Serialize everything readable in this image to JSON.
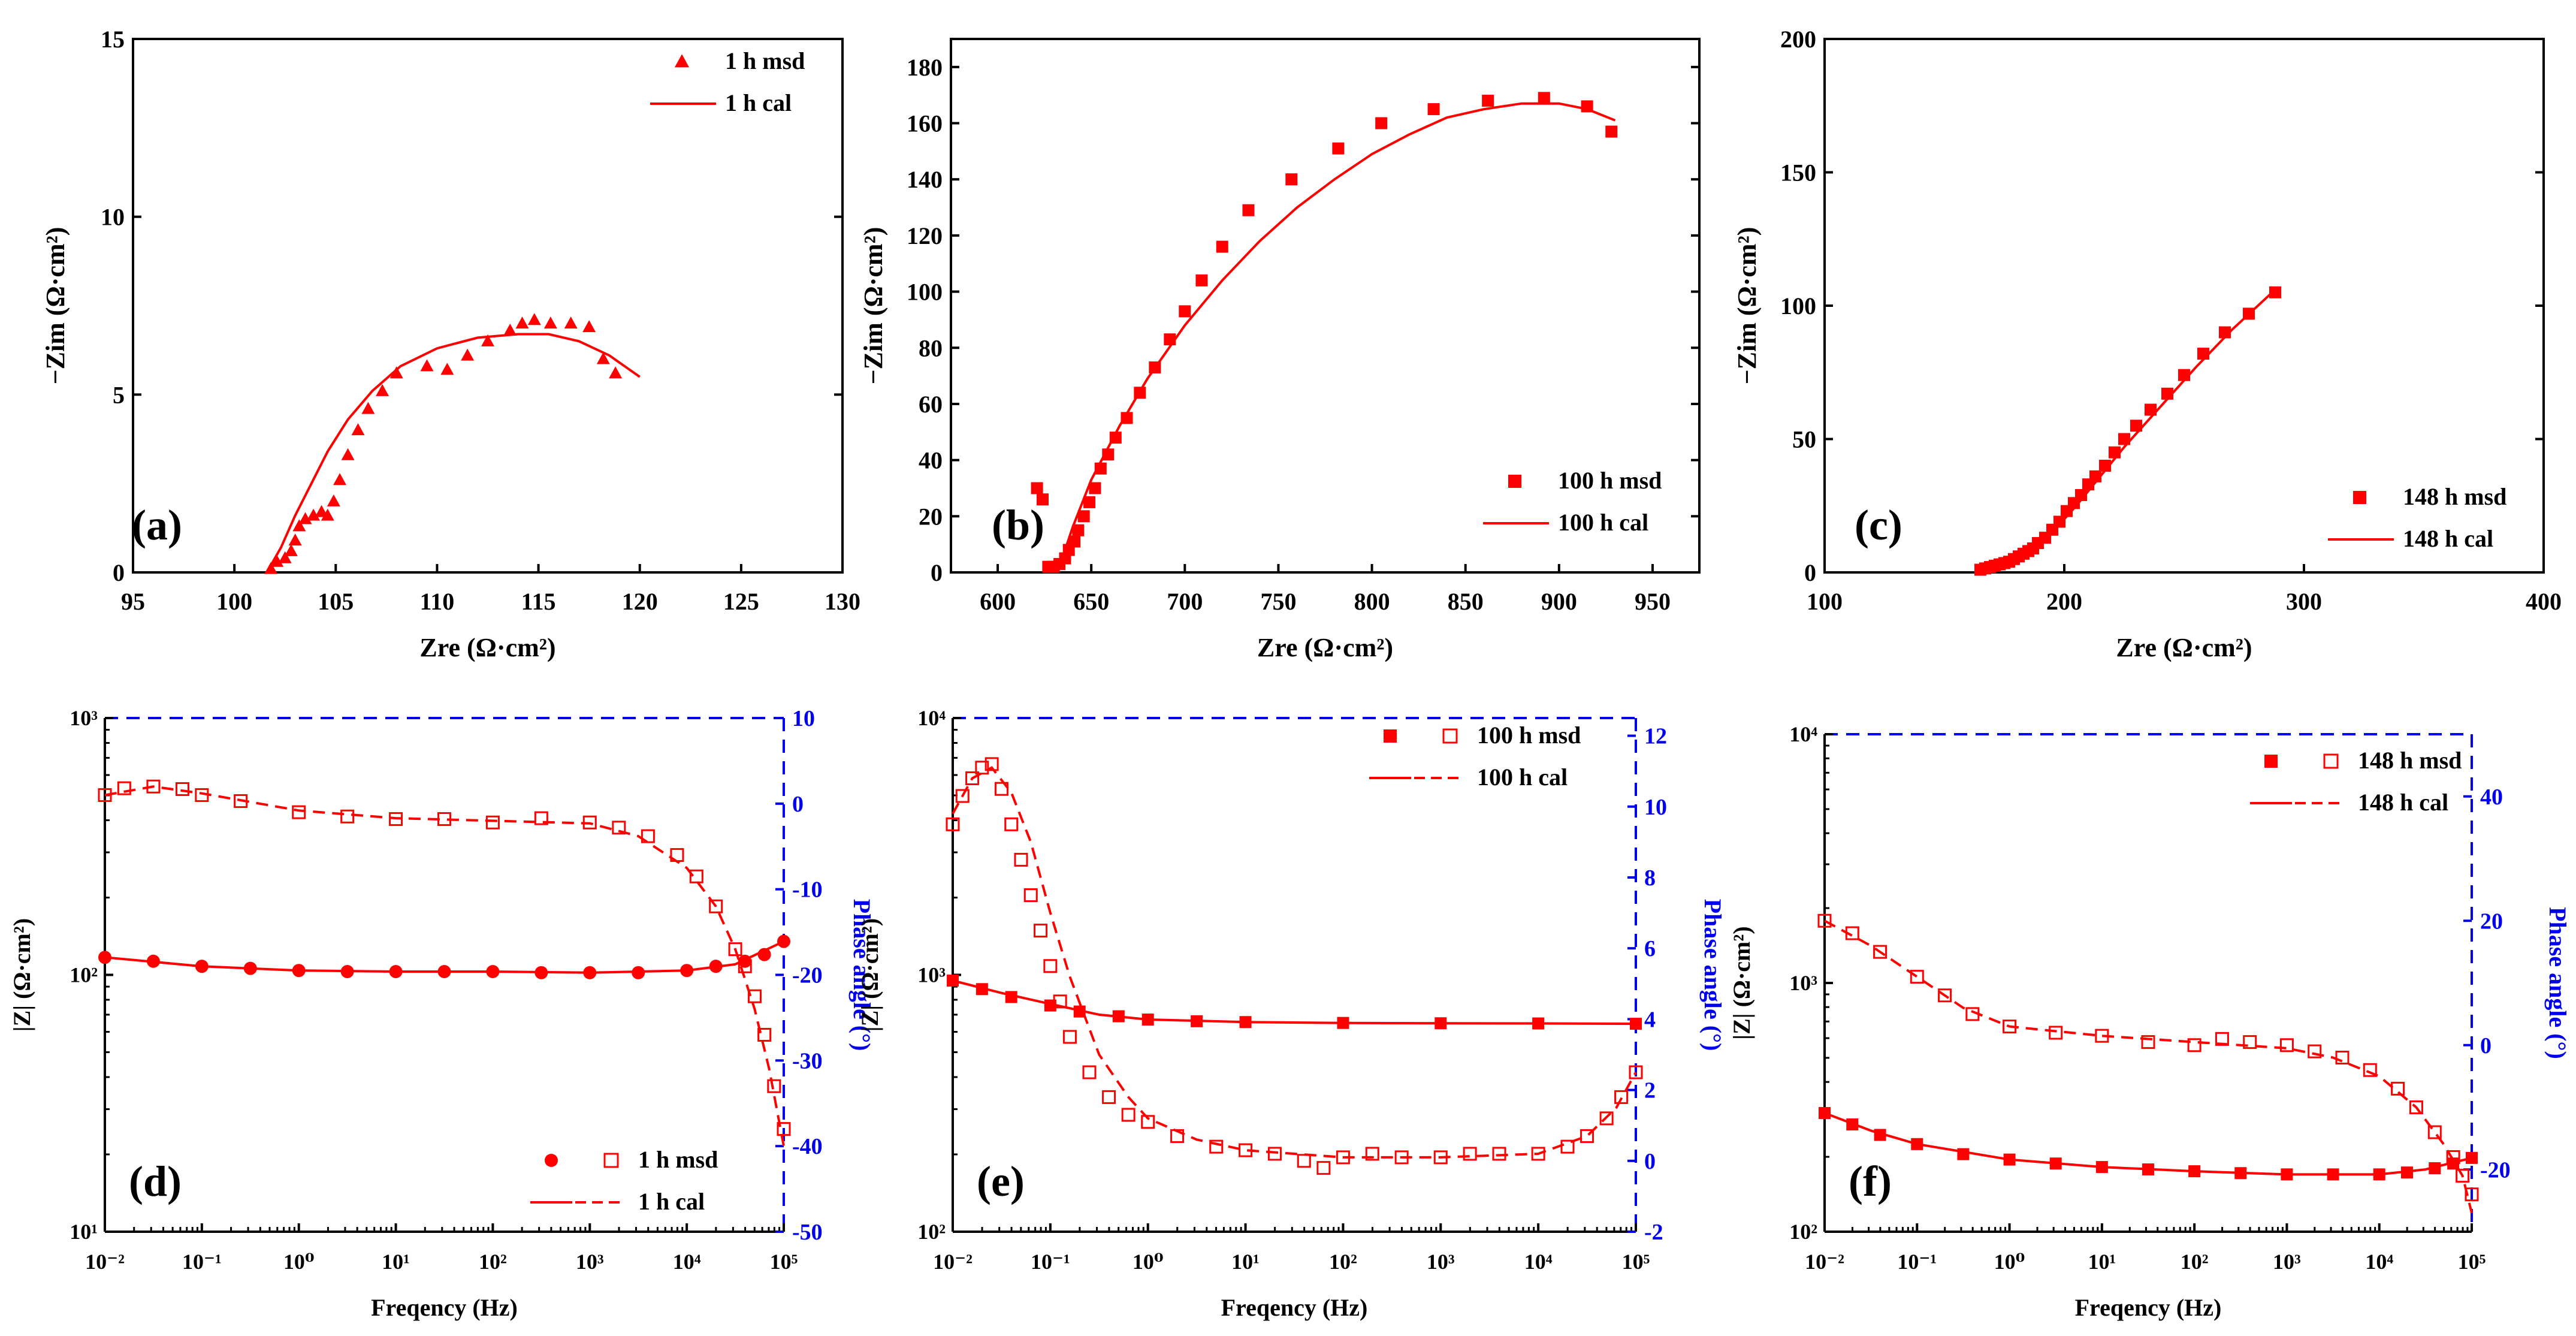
{
  "colors": {
    "series": "#ff0000",
    "axis": "#000000",
    "phase_axis": "#0000ee",
    "background": "#ffffff"
  },
  "chart_data": [
    {
      "panel": "(a)",
      "type": "scatter",
      "xlabel": "Zre (Ω·cm²)",
      "ylabel": "−Zim (Ω·cm²)",
      "xlim": [
        95,
        130
      ],
      "ylim": [
        0,
        15
      ],
      "xticks": [
        95,
        100,
        105,
        110,
        115,
        120,
        125,
        130
      ],
      "yticks": [
        0,
        5,
        10,
        15
      ],
      "marker": "triangle",
      "legend_position": "top-right",
      "series": [
        {
          "name": "1 h msd",
          "style": "markers",
          "x": [
            101.8,
            102.1,
            102.5,
            102.8,
            103.0,
            103.2,
            103.5,
            103.9,
            104.3,
            104.6,
            104.9,
            105.2,
            105.6,
            106.1,
            106.6,
            107.3,
            108.0,
            109.5,
            110.5,
            111.5,
            112.5,
            113.6,
            114.2,
            114.8,
            115.6,
            116.6,
            117.5,
            118.2,
            118.8
          ],
          "y": [
            0.1,
            0.3,
            0.4,
            0.6,
            0.9,
            1.3,
            1.5,
            1.6,
            1.7,
            1.6,
            2.0,
            2.6,
            3.3,
            4.0,
            4.6,
            5.1,
            5.6,
            5.8,
            5.7,
            6.1,
            6.5,
            6.8,
            7.0,
            7.1,
            7.0,
            7.0,
            6.9,
            6.0,
            5.6
          ]
        },
        {
          "name": "1 h cal",
          "style": "line",
          "x": [
            101.6,
            102.3,
            103.0,
            103.8,
            104.6,
            105.6,
            106.8,
            108.2,
            110.0,
            112.0,
            114.0,
            115.5,
            117.0,
            118.5,
            120.0
          ],
          "y": [
            0,
            0.7,
            1.6,
            2.5,
            3.4,
            4.3,
            5.1,
            5.8,
            6.3,
            6.6,
            6.7,
            6.7,
            6.5,
            6.1,
            5.5
          ]
        }
      ]
    },
    {
      "panel": "(b)",
      "type": "scatter",
      "xlabel": "Zre (Ω·cm²)",
      "ylabel": "−Zim (Ω·cm²)",
      "xlim": [
        575,
        975
      ],
      "ylim": [
        0,
        190
      ],
      "xticks": [
        600,
        650,
        700,
        750,
        800,
        850,
        900,
        950
      ],
      "yticks": [
        0,
        20,
        40,
        60,
        80,
        100,
        120,
        140,
        160,
        180
      ],
      "marker": "square",
      "legend_position": "bottom-right",
      "series": [
        {
          "name": "100 h msd",
          "style": "markers",
          "x": [
            621,
            624,
            627,
            630,
            633,
            636,
            638,
            641,
            643,
            646,
            649,
            652,
            655,
            659,
            663,
            669,
            676,
            684,
            692,
            700,
            709,
            720,
            734,
            757,
            782,
            805,
            833,
            862,
            892,
            915,
            928
          ],
          "y": [
            30,
            26,
            2,
            2,
            3,
            5,
            8,
            11,
            15,
            20,
            25,
            30,
            37,
            42,
            48,
            55,
            64,
            73,
            83,
            93,
            104,
            116,
            129,
            140,
            151,
            160,
            165,
            168,
            169,
            166,
            157
          ]
        },
        {
          "name": "100 h cal",
          "style": "line",
          "x": [
            632,
            640,
            650,
            665,
            680,
            700,
            720,
            740,
            760,
            780,
            800,
            820,
            840,
            860,
            880,
            900,
            915,
            930
          ],
          "y": [
            0,
            16,
            33,
            52,
            69,
            88,
            104,
            118,
            130,
            140,
            149,
            156,
            162,
            165,
            167,
            167,
            165,
            161
          ]
        }
      ]
    },
    {
      "panel": "(c)",
      "type": "scatter",
      "xlabel": "Zre (Ω·cm²)",
      "ylabel": "−Zim (Ω·cm²)",
      "xlim": [
        100,
        400
      ],
      "ylim": [
        0,
        200
      ],
      "xticks": [
        100,
        200,
        300,
        400
      ],
      "yticks": [
        0,
        50,
        100,
        150,
        200
      ],
      "marker": "square",
      "legend_position": "bottom-right",
      "series": [
        {
          "name": "148 h msd",
          "style": "markers",
          "x": [
            165,
            167,
            169,
            171,
            173,
            175,
            177,
            179,
            181,
            183,
            185,
            187,
            189,
            192,
            195,
            198,
            201,
            204,
            207,
            210,
            213,
            217,
            221,
            225,
            230,
            236,
            243,
            250,
            258,
            267,
            277,
            288
          ],
          "y": [
            1,
            1.5,
            2,
            2.5,
            3,
            3.5,
            4,
            5,
            6,
            7,
            8,
            9,
            11,
            13,
            16,
            19,
            23,
            26,
            29,
            33,
            36,
            40,
            45,
            50,
            55,
            61,
            67,
            74,
            82,
            90,
            97,
            105
          ]
        },
        {
          "name": "148 h cal",
          "style": "line",
          "x": [
            165,
            175,
            185,
            195,
            205,
            215,
            225,
            240,
            255,
            270,
            288
          ],
          "y": [
            1,
            3,
            7,
            15,
            25,
            36,
            47,
            62,
            77,
            91,
            106
          ]
        }
      ]
    },
    {
      "panel": "(d)",
      "type": "scatter",
      "xlabel": "Freqency (Hz)",
      "ylabel": "|Z| (Ω·cm²)",
      "y2label": "Phase angle (°)",
      "x_scale": "log",
      "xlim": [
        0.01,
        100000
      ],
      "xticks": [
        "10⁻²",
        "10⁻¹",
        "10⁰",
        "10¹",
        "10²",
        "10³",
        "10⁴",
        "10⁵"
      ],
      "y_scale": "log",
      "ylim": [
        10,
        1000
      ],
      "yticks": [
        "10¹",
        "10²",
        "10³"
      ],
      "y2lim": [
        -50,
        10
      ],
      "y2ticks": [
        -50,
        -40,
        -30,
        -20,
        -10,
        0,
        10
      ],
      "legend_position": "bottom-right",
      "legend": [
        {
          "label": "1 h msd",
          "markers": [
            "filled-circle",
            "open-square"
          ]
        },
        {
          "label": "1 h cal",
          "lines": [
            "solid",
            "dashed"
          ]
        }
      ],
      "series": [
        {
          "name": "|Z| msd",
          "axis": "left",
          "marker": "filled-circle",
          "x_log10": [
            -2,
            -1.5,
            -1,
            -0.5,
            0,
            0.5,
            1,
            1.5,
            2,
            2.5,
            3,
            3.5,
            4,
            4.3,
            4.6,
            4.8,
            5
          ],
          "y": [
            117,
            113,
            108,
            106,
            104,
            103,
            103,
            103,
            103,
            102,
            102,
            102,
            104,
            108,
            113,
            120,
            135
          ]
        },
        {
          "name": "|Z| cal",
          "axis": "left",
          "style": "solid",
          "x_log10": [
            -2,
            -1,
            0,
            1,
            2,
            3,
            4,
            4.5,
            5
          ],
          "y": [
            117,
            108,
            104,
            103,
            103,
            102,
            104,
            110,
            135
          ]
        },
        {
          "name": "Phase msd",
          "axis": "right",
          "marker": "open-square",
          "x_log10": [
            -2,
            -1.8,
            -1.5,
            -1.2,
            -1,
            -0.6,
            0,
            0.5,
            1,
            1.5,
            2,
            2.5,
            3,
            3.3,
            3.6,
            3.9,
            4.1,
            4.3,
            4.5,
            4.6,
            4.7,
            4.8,
            4.9,
            5
          ],
          "y": [
            1.0,
            1.8,
            2.0,
            1.7,
            1.0,
            0.3,
            -1.0,
            -1.5,
            -1.8,
            -1.8,
            -2.2,
            -1.7,
            -2.2,
            -2.8,
            -3.8,
            -6.0,
            -8.5,
            -12.0,
            -17.0,
            -19.0,
            -22.5,
            -27.0,
            -33.0,
            -38.0
          ]
        },
        {
          "name": "Phase cal",
          "axis": "right",
          "style": "dashed",
          "x_log10": [
            -2,
            -1.5,
            -1,
            0,
            1,
            2,
            3,
            3.5,
            4,
            4.3,
            4.5,
            4.7,
            4.85,
            5
          ],
          "y": [
            1.0,
            2.0,
            1.2,
            -0.8,
            -1.7,
            -2.0,
            -2.3,
            -3.8,
            -7.5,
            -12.0,
            -17.0,
            -24.0,
            -31.0,
            -40.0
          ]
        }
      ]
    },
    {
      "panel": "(e)",
      "type": "scatter",
      "xlabel": "Freqency (Hz)",
      "ylabel": "|Z| (Ω·cm²)",
      "y2label": "Phase angle (°)",
      "x_scale": "log",
      "xlim": [
        0.01,
        100000
      ],
      "xticks": [
        "10⁻²",
        "10⁻¹",
        "10⁰",
        "10¹",
        "10²",
        "10³",
        "10⁴",
        "10⁵"
      ],
      "y_scale": "log",
      "ylim": [
        100,
        10000
      ],
      "yticks": [
        "10²",
        "10³",
        "10⁴"
      ],
      "y2lim": [
        -2,
        12.5
      ],
      "y2ticks": [
        -2,
        0,
        2,
        4,
        6,
        8,
        10,
        12
      ],
      "legend_position": "top-right",
      "legend": [
        {
          "label": "100 h msd",
          "markers": [
            "filled-square",
            "open-square"
          ]
        },
        {
          "label": "100 h cal",
          "lines": [
            "solid",
            "dashed"
          ]
        }
      ],
      "series": [
        {
          "name": "|Z| msd",
          "axis": "left",
          "marker": "filled-square",
          "x_log10": [
            -2,
            -1.7,
            -1.4,
            -1,
            -0.7,
            -0.3,
            0,
            0.5,
            1,
            2,
            3,
            4,
            5
          ],
          "y": [
            950,
            880,
            820,
            760,
            720,
            690,
            670,
            660,
            655,
            650,
            648,
            647,
            645
          ]
        },
        {
          "name": "|Z| cal",
          "axis": "left",
          "style": "solid",
          "x_log10": [
            -2,
            -1.5,
            -1,
            -0.5,
            0,
            1,
            2,
            3,
            4,
            5
          ],
          "y": [
            950,
            850,
            770,
            700,
            670,
            655,
            650,
            648,
            647,
            645
          ]
        },
        {
          "name": "Phase msd",
          "axis": "right",
          "marker": "open-square",
          "x_log10": [
            -2,
            -1.9,
            -1.8,
            -1.7,
            -1.6,
            -1.5,
            -1.4,
            -1.3,
            -1.2,
            -1.1,
            -1.0,
            -0.9,
            -0.8,
            -0.6,
            -0.4,
            -0.2,
            0,
            0.3,
            0.7,
            1,
            1.3,
            1.6,
            1.8,
            2,
            2.3,
            2.6,
            3,
            3.3,
            3.6,
            4,
            4.3,
            4.5,
            4.7,
            4.85,
            5
          ],
          "y": [
            9.5,
            10.3,
            10.8,
            11.1,
            11.2,
            10.5,
            9.5,
            8.5,
            7.5,
            6.5,
            5.5,
            4.5,
            3.5,
            2.5,
            1.8,
            1.3,
            1.1,
            0.7,
            0.4,
            0.3,
            0.2,
            0.0,
            -0.2,
            0.1,
            0.2,
            0.1,
            0.1,
            0.2,
            0.2,
            0.2,
            0.4,
            0.7,
            1.2,
            1.8,
            2.5
          ]
        },
        {
          "name": "Phase cal",
          "axis": "right",
          "style": "dashed",
          "x_log10": [
            -2,
            -1.8,
            -1.6,
            -1.4,
            -1.2,
            -1,
            -0.8,
            -0.5,
            -0.2,
            0,
            0.5,
            1,
            2,
            3,
            4,
            4.5,
            4.8,
            5
          ],
          "y": [
            9.8,
            10.8,
            11.1,
            10.4,
            9.0,
            7.0,
            5.2,
            3.0,
            1.8,
            1.2,
            0.6,
            0.3,
            0.1,
            0.1,
            0.2,
            0.7,
            1.5,
            2.5
          ]
        }
      ]
    },
    {
      "panel": "(f)",
      "type": "scatter",
      "xlabel": "Freqency (Hz)",
      "ylabel": "|Z| (Ω·cm²)",
      "y2label": "Phase angle (°)",
      "x_scale": "log",
      "xlim": [
        0.01,
        100000
      ],
      "xticks": [
        "10⁻²",
        "10⁻¹",
        "10⁰",
        "10¹",
        "10²",
        "10³",
        "10⁴",
        "10⁵"
      ],
      "y_scale": "log",
      "ylim": [
        100,
        10000
      ],
      "yticks": [
        "10²",
        "10³",
        "10⁴"
      ],
      "y2lim": [
        -30,
        50
      ],
      "y2ticks": [
        -20,
        0,
        20,
        40
      ],
      "legend_position": "top-right",
      "legend": [
        {
          "label": "148 h msd",
          "markers": [
            "filled-square",
            "open-square"
          ]
        },
        {
          "label": "148 h cal",
          "lines": [
            "solid",
            "dashed"
          ]
        }
      ],
      "series": [
        {
          "name": "|Z| msd",
          "axis": "left",
          "marker": "filled-square",
          "x_log10": [
            -2,
            -1.7,
            -1.4,
            -1,
            -0.5,
            0,
            0.5,
            1,
            1.5,
            2,
            2.5,
            3,
            3.5,
            4,
            4.3,
            4.6,
            4.8,
            5
          ],
          "y": [
            300,
            270,
            245,
            225,
            205,
            195,
            188,
            182,
            178,
            175,
            172,
            170,
            170,
            170,
            173,
            180,
            188,
            198
          ]
        },
        {
          "name": "|Z| cal",
          "axis": "left",
          "style": "solid",
          "x_log10": [
            -2,
            -1.5,
            -1,
            0,
            1,
            2,
            3,
            4,
            4.5,
            5
          ],
          "y": [
            300,
            255,
            225,
            195,
            182,
            175,
            170,
            170,
            178,
            198
          ]
        },
        {
          "name": "Phase msd",
          "axis": "right",
          "marker": "open-square",
          "x_log10": [
            -2,
            -1.7,
            -1.4,
            -1,
            -0.7,
            -0.4,
            0,
            0.5,
            1,
            1.5,
            2,
            2.3,
            2.6,
            3,
            3.3,
            3.6,
            3.9,
            4.2,
            4.4,
            4.6,
            4.8,
            4.9,
            5
          ],
          "y": [
            20,
            18,
            15,
            11,
            8,
            5,
            3,
            2,
            1.5,
            0.5,
            0,
            1,
            0.5,
            0,
            -1,
            -2,
            -4,
            -7,
            -10,
            -14,
            -18,
            -21,
            -24
          ]
        },
        {
          "name": "Phase cal",
          "axis": "right",
          "style": "dashed",
          "x_log10": [
            -2,
            -1.5,
            -1,
            -0.5,
            0,
            1,
            2,
            3,
            3.5,
            4,
            4.4,
            4.7,
            4.9,
            5
          ],
          "y": [
            20,
            16,
            11,
            6,
            3,
            1.5,
            0.5,
            -0.5,
            -2,
            -5,
            -10,
            -16,
            -21,
            -27
          ]
        }
      ]
    }
  ]
}
